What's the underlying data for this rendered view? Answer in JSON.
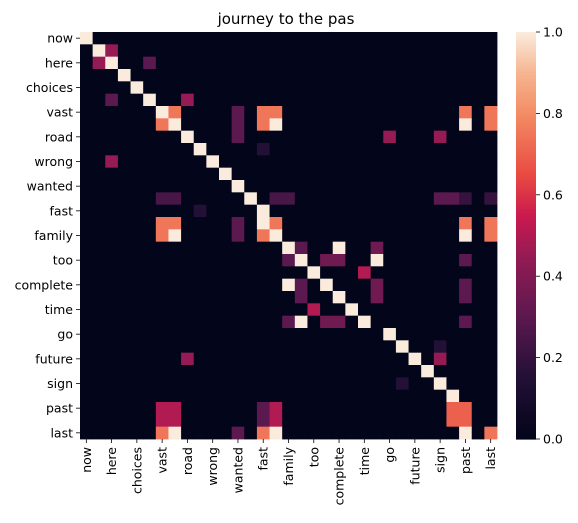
{
  "chart_data": {
    "type": "heatmap",
    "title": "journey to the pas",
    "xlabel": "",
    "ylabel": "",
    "labels": [
      "now",
      "",
      "here",
      "",
      "choices",
      "",
      "vast",
      "",
      "road",
      "",
      "wrong",
      "",
      "wanted",
      "",
      "fast",
      "",
      "family",
      "",
      "too",
      "",
      "complete",
      "",
      "time",
      "",
      "go",
      "",
      "future",
      "",
      "sign",
      "",
      "past",
      "",
      "last"
    ],
    "ytick_labels": [
      "now",
      "here",
      "choices",
      "vast",
      "road",
      "wrong",
      "wanted",
      "fast",
      "family",
      "too",
      "complete",
      "time",
      "go",
      "future",
      "sign",
      "past",
      "last"
    ],
    "xtick_labels": [
      "now",
      "here",
      "choices",
      "vast",
      "road",
      "wrong",
      "wanted",
      "fast",
      "family",
      "too",
      "complete",
      "time",
      "go",
      "future",
      "sign",
      "past",
      "last"
    ],
    "matrix": [
      [
        1,
        0,
        0,
        0,
        0,
        0,
        0,
        0,
        0,
        0,
        0,
        0,
        0,
        0,
        0,
        0,
        0,
        0,
        0,
        0,
        0,
        0,
        0,
        0,
        0,
        0,
        0,
        0,
        0,
        0,
        0,
        0,
        0
      ],
      [
        0,
        1,
        0.45,
        0,
        0,
        0,
        0,
        0,
        0,
        0,
        0,
        0,
        0,
        0,
        0,
        0,
        0,
        0,
        0,
        0,
        0,
        0,
        0,
        0,
        0,
        0,
        0,
        0,
        0,
        0,
        0,
        0,
        0
      ],
      [
        0,
        0.45,
        1,
        0,
        0,
        0.3,
        0,
        0,
        0,
        0,
        0,
        0,
        0,
        0,
        0,
        0,
        0,
        0,
        0,
        0,
        0,
        0,
        0,
        0,
        0,
        0,
        0,
        0,
        0,
        0,
        0,
        0,
        0
      ],
      [
        0,
        0,
        0,
        1,
        0,
        0,
        0,
        0,
        0,
        0,
        0,
        0,
        0,
        0,
        0,
        0,
        0,
        0,
        0,
        0,
        0,
        0,
        0,
        0,
        0,
        0,
        0,
        0,
        0,
        0,
        0,
        0,
        0
      ],
      [
        0,
        0,
        0,
        0,
        1,
        0,
        0,
        0,
        0,
        0,
        0,
        0,
        0,
        0,
        0,
        0,
        0,
        0,
        0,
        0,
        0,
        0,
        0,
        0,
        0,
        0,
        0,
        0,
        0,
        0,
        0,
        0,
        0
      ],
      [
        0,
        0,
        0.3,
        0,
        0,
        1,
        0,
        0,
        0.45,
        0,
        0,
        0,
        0,
        0,
        0,
        0,
        0,
        0,
        0,
        0,
        0,
        0,
        0,
        0,
        0,
        0,
        0,
        0,
        0,
        0,
        0,
        0,
        0
      ],
      [
        0,
        0,
        0,
        0,
        0,
        0,
        1,
        0.75,
        0,
        0,
        0,
        0,
        0.3,
        0,
        0.75,
        0.75,
        0,
        0,
        0,
        0,
        0,
        0,
        0,
        0,
        0,
        0,
        0,
        0,
        0,
        0,
        0.75,
        0,
        0.75
      ],
      [
        0,
        0,
        0,
        0,
        0,
        0,
        0.75,
        1,
        0,
        0,
        0,
        0,
        0.3,
        0,
        0.75,
        1,
        0,
        0,
        0,
        0,
        0,
        0,
        0,
        0,
        0,
        0,
        0,
        0,
        0,
        0,
        1,
        0,
        0.75
      ],
      [
        0,
        0,
        0,
        0,
        0,
        0,
        0,
        0,
        1,
        0,
        0,
        0,
        0.3,
        0,
        0,
        0,
        0,
        0,
        0,
        0,
        0,
        0,
        0,
        0,
        0.45,
        0,
        0,
        0,
        0.45,
        0,
        0,
        0,
        0
      ],
      [
        0,
        0,
        0,
        0,
        0,
        0,
        0,
        0,
        0,
        1,
        0,
        0,
        0,
        0,
        0.15,
        0,
        0,
        0,
        0,
        0,
        0,
        0,
        0,
        0,
        0,
        0,
        0,
        0,
        0,
        0,
        0,
        0,
        0
      ],
      [
        0,
        0,
        0.45,
        0,
        0,
        0,
        0,
        0,
        0,
        0,
        1,
        0,
        0,
        0,
        0,
        0,
        0,
        0,
        0,
        0,
        0,
        0,
        0,
        0,
        0,
        0,
        0,
        0,
        0,
        0,
        0,
        0,
        0
      ],
      [
        0,
        0,
        0,
        0,
        0,
        0,
        0,
        0,
        0,
        0,
        0,
        1,
        0,
        0,
        0,
        0,
        0,
        0,
        0,
        0,
        0,
        0,
        0,
        0,
        0,
        0,
        0,
        0,
        0,
        0,
        0,
        0,
        0
      ],
      [
        0,
        0,
        0,
        0,
        0,
        0,
        0,
        0,
        0,
        0,
        0,
        0,
        1,
        0,
        0,
        0,
        0,
        0,
        0,
        0,
        0,
        0,
        0,
        0,
        0,
        0,
        0,
        0,
        0,
        0,
        0,
        0,
        0
      ],
      [
        0,
        0,
        0,
        0,
        0,
        0,
        0.25,
        0.25,
        0,
        0,
        0,
        0,
        0,
        1,
        0,
        0.25,
        0.25,
        0,
        0,
        0,
        0,
        0,
        0,
        0,
        0,
        0,
        0,
        0,
        0.3,
        0.3,
        0.2,
        0,
        0.2
      ],
      [
        0,
        0,
        0,
        0,
        0,
        0,
        0,
        0,
        0,
        0.15,
        0,
        0,
        0,
        0,
        1,
        0,
        0,
        0,
        0,
        0,
        0,
        0,
        0,
        0,
        0,
        0,
        0,
        0,
        0,
        0,
        0,
        0,
        0
      ],
      [
        0,
        0,
        0,
        0,
        0,
        0,
        0.75,
        0.75,
        0,
        0,
        0,
        0,
        0.3,
        0,
        1,
        0.75,
        0,
        0,
        0,
        0,
        0,
        0,
        0,
        0,
        0,
        0,
        0,
        0,
        0,
        0,
        0.75,
        0,
        0.75
      ],
      [
        0,
        0,
        0,
        0,
        0,
        0,
        0.75,
        1,
        0,
        0,
        0,
        0,
        0.3,
        0,
        0.75,
        1,
        0,
        0,
        0,
        0,
        0,
        0,
        0,
        0,
        0,
        0,
        0,
        0,
        0,
        0,
        1,
        0,
        0.75
      ],
      [
        0,
        0,
        0,
        0,
        0,
        0,
        0,
        0,
        0,
        0,
        0,
        0,
        0,
        0,
        0,
        0,
        1,
        0.3,
        0,
        0,
        1,
        0,
        0,
        0.35,
        0,
        0,
        0,
        0,
        0,
        0,
        0,
        0,
        0
      ],
      [
        0,
        0,
        0,
        0,
        0,
        0,
        0,
        0,
        0,
        0,
        0,
        0,
        0,
        0,
        0,
        0,
        0.3,
        1,
        0,
        0.35,
        0.35,
        0,
        0,
        1,
        0,
        0,
        0,
        0,
        0,
        0,
        0.3,
        0,
        0
      ],
      [
        0,
        0,
        0,
        0,
        0,
        0,
        0,
        0,
        0,
        0,
        0,
        0,
        0,
        0,
        0,
        0,
        0,
        0,
        1,
        0,
        0,
        0,
        0.5,
        0,
        0,
        0,
        0,
        0,
        0,
        0,
        0,
        0,
        0
      ],
      [
        0,
        0,
        0,
        0,
        0,
        0,
        0,
        0,
        0,
        0,
        0,
        0,
        0,
        0,
        0,
        0,
        1,
        0.3,
        0,
        1,
        0,
        0,
        0,
        0.35,
        0,
        0,
        0,
        0,
        0,
        0,
        0.3,
        0,
        0
      ],
      [
        0,
        0,
        0,
        0,
        0,
        0,
        0,
        0,
        0,
        0,
        0,
        0,
        0,
        0,
        0,
        0,
        0,
        0.3,
        0,
        0,
        1,
        0,
        0,
        0.35,
        0,
        0,
        0,
        0,
        0,
        0,
        0.3,
        0,
        0
      ],
      [
        0,
        0,
        0,
        0,
        0,
        0,
        0,
        0,
        0,
        0,
        0,
        0,
        0,
        0,
        0,
        0,
        0,
        0,
        0.5,
        0,
        0,
        1,
        0,
        0,
        0,
        0,
        0,
        0,
        0,
        0,
        0,
        0,
        0
      ],
      [
        0,
        0,
        0,
        0,
        0,
        0,
        0,
        0,
        0,
        0,
        0,
        0,
        0,
        0,
        0,
        0,
        0.3,
        1,
        0,
        0.35,
        0.35,
        0,
        1,
        0,
        0,
        0,
        0,
        0,
        0,
        0,
        0.3,
        0,
        0
      ],
      [
        0,
        0,
        0,
        0,
        0,
        0,
        0,
        0,
        0,
        0,
        0,
        0,
        0,
        0,
        0,
        0,
        0,
        0,
        0,
        0,
        0,
        0,
        0,
        0,
        1,
        0,
        0,
        0,
        0,
        0,
        0,
        0,
        0
      ],
      [
        0,
        0,
        0,
        0,
        0,
        0,
        0,
        0,
        0,
        0,
        0,
        0,
        0,
        0,
        0,
        0,
        0,
        0,
        0,
        0,
        0,
        0,
        0,
        0,
        0,
        1,
        0,
        0,
        0.15,
        0,
        0,
        0,
        0
      ],
      [
        0,
        0,
        0,
        0,
        0,
        0,
        0,
        0,
        0.45,
        0,
        0,
        0,
        0,
        0,
        0,
        0,
        0,
        0,
        0,
        0,
        0,
        0,
        0,
        0,
        0,
        0,
        1,
        0,
        0.45,
        0,
        0,
        0,
        0
      ],
      [
        0,
        0,
        0,
        0,
        0,
        0,
        0,
        0,
        0,
        0,
        0,
        0,
        0,
        0,
        0,
        0,
        0,
        0,
        0,
        0,
        0,
        0,
        0,
        0,
        0,
        0,
        0,
        1,
        0,
        0,
        0,
        0,
        0
      ],
      [
        0,
        0,
        0,
        0,
        0,
        0,
        0,
        0,
        0,
        0,
        0,
        0,
        0,
        0,
        0,
        0,
        0,
        0,
        0,
        0,
        0,
        0,
        0,
        0,
        0,
        0.15,
        0,
        0,
        1,
        0,
        0,
        0,
        0
      ],
      [
        0,
        0,
        0,
        0,
        0,
        0,
        0,
        0,
        0,
        0,
        0,
        0,
        0,
        0,
        0,
        0,
        0,
        0,
        0,
        0,
        0,
        0,
        0,
        0,
        0,
        0,
        0,
        0,
        0,
        1,
        0,
        0,
        0
      ],
      [
        0,
        0,
        0,
        0,
        0,
        0,
        0.5,
        0.5,
        0,
        0,
        0,
        0,
        0,
        0,
        0.3,
        0.5,
        0,
        0,
        0,
        0,
        0,
        0,
        0,
        0,
        0,
        0,
        0,
        0,
        0,
        0.7,
        0.7,
        0,
        0
      ],
      [
        0,
        0,
        0,
        0,
        0,
        0,
        0.5,
        0.5,
        0,
        0,
        0,
        0,
        0,
        0,
        0.3,
        0.5,
        0,
        0,
        0,
        0,
        0,
        0,
        0,
        0,
        0,
        0,
        0,
        0,
        0,
        0.7,
        0.7,
        0,
        0
      ],
      [
        0,
        0,
        0,
        0,
        0,
        0,
        0.75,
        1,
        0,
        0,
        0,
        0,
        0.3,
        0,
        0.75,
        1,
        0,
        0,
        0,
        0,
        0,
        0,
        0,
        0,
        0,
        0,
        0,
        0,
        0,
        0,
        1,
        0,
        0.75
      ]
    ],
    "colorbar": {
      "vmin": 0.0,
      "vmax": 1.0,
      "ticks": [
        "0.0",
        "0.2",
        "0.4",
        "0.6",
        "0.8",
        "1.0"
      ],
      "tick_values": [
        0.0,
        0.2,
        0.4,
        0.6,
        0.8,
        1.0
      ],
      "colormap": "rocket"
    },
    "grid": false,
    "legend": "colorbar-right"
  }
}
